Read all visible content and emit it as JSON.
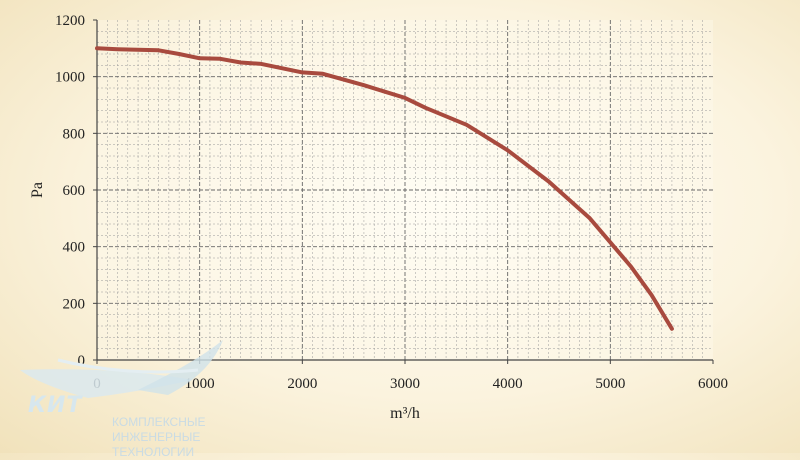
{
  "chart_data": {
    "type": "line",
    "title": "",
    "xlabel": "m³/h",
    "ylabel": "Pa",
    "xlim": [
      0,
      6000
    ],
    "ylim": [
      0,
      1200
    ],
    "x_ticks": [
      0,
      1000,
      2000,
      3000,
      4000,
      5000,
      6000
    ],
    "y_ticks": [
      0,
      200,
      400,
      600,
      800,
      1000,
      1200
    ],
    "grid": true,
    "series": [
      {
        "color": "#a84a3e",
        "x": [
          0,
          200,
          600,
          800,
          1000,
          1200,
          1400,
          1600,
          1800,
          2000,
          2200,
          2600,
          3000,
          3200,
          3600,
          4000,
          4400,
          4800,
          5200,
          5400,
          5600
        ],
        "y": [
          1100,
          1097,
          1093,
          1080,
          1065,
          1063,
          1050,
          1045,
          1030,
          1015,
          1010,
          970,
          925,
          890,
          830,
          740,
          630,
          500,
          330,
          230,
          110
        ]
      }
    ]
  },
  "logo": {
    "name": "КИТ",
    "subtitle": "КОМПЛЕКСНЫЕ ИНЖЕНЕРНЫЕ ТЕХНОЛОГИИ"
  }
}
